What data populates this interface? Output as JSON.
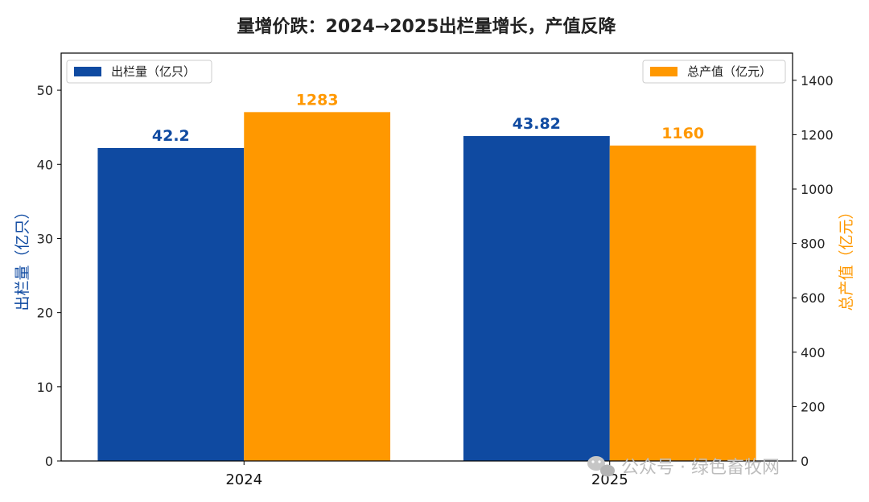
{
  "chart_data": {
    "type": "bar",
    "title": "量增价跌：2024→2025出栏量增长，产值反降",
    "categories": [
      "2024",
      "2025"
    ],
    "series": [
      {
        "name": "出栏量（亿只）",
        "axis": "left",
        "values": [
          42.2,
          43.82
        ],
        "labels": [
          "42.2",
          "43.82"
        ],
        "color": "#0f4aa1"
      },
      {
        "name": "总产值（亿元）",
        "axis": "right",
        "values": [
          1283,
          1160
        ],
        "labels": [
          "1283",
          "1160"
        ],
        "color": "#ff9800"
      }
    ],
    "ylabel_left": "出栏量（亿只）",
    "ylabel_right": "总产值（亿元）",
    "ylim_left": [
      0,
      55
    ],
    "ylim_right": [
      0,
      1500
    ],
    "yticks_left": [
      "0",
      "10",
      "20",
      "30",
      "40",
      "50"
    ],
    "yticks_right": [
      "0",
      "200",
      "400",
      "600",
      "800",
      "1000",
      "1200",
      "1400"
    ],
    "grid": false,
    "legend_left_placement": "top-left",
    "legend_right_placement": "top-right"
  },
  "watermark": {
    "text": "公众号 · 绿色畜牧网",
    "icon": "wechat-icon"
  }
}
